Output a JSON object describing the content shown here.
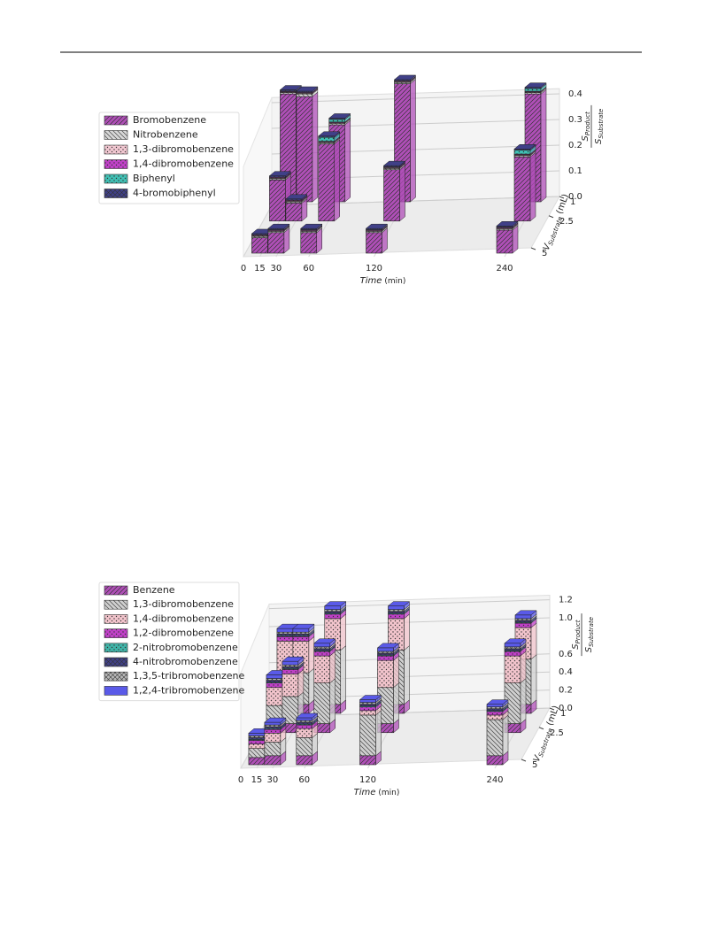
{
  "chart_data": [
    {
      "type": "bar3d",
      "x": [
        15,
        30,
        60,
        120,
        240,
        15,
        30,
        60,
        120,
        240,
        15,
        30,
        60,
        120,
        240
      ],
      "y": [
        1,
        1,
        1,
        1,
        1,
        2.5,
        2.5,
        2.5,
        2.5,
        2.5,
        5,
        5,
        5,
        5,
        5
      ],
      "series": [
        {
          "name": "Bromobenzene",
          "color": "#b04fb8",
          "hatch": "diag",
          "values": [
            0.42,
            0.41,
            0.3,
            0.46,
            0.42,
            0.16,
            0.07,
            0.3,
            0.2,
            0.25,
            0.06,
            0.08,
            0.08,
            0.08,
            0.09
          ]
        },
        {
          "name": "Nitrobenzene",
          "color": "#d8d8d8",
          "hatch": "backdiag",
          "values": [
            0.005,
            0.01,
            0.005,
            0.005,
            0.005,
            0.005,
            0.005,
            0.005,
            0.005,
            0.005,
            0.005,
            0.005,
            0.005,
            0.005,
            0.005
          ]
        },
        {
          "name": "1,3-dibromobenzene",
          "color": "#f2c8d2",
          "hatch": "dots",
          "values": [
            0.003,
            0.003,
            0.003,
            0.003,
            0.003,
            0.003,
            0.003,
            0.003,
            0.003,
            0.003,
            0.003,
            0.003,
            0.003,
            0.003,
            0.003
          ]
        },
        {
          "name": "1,4-dibromobenzene",
          "color": "#c040c8",
          "hatch": "dots",
          "values": [
            0.003,
            0.003,
            0.003,
            0.003,
            0.003,
            0.003,
            0.003,
            0.003,
            0.003,
            0.003,
            0.003,
            0.003,
            0.003,
            0.003,
            0.003
          ]
        },
        {
          "name": "Biphenyl",
          "color": "#40c0b4",
          "hatch": "dots",
          "values": [
            0,
            0,
            0.01,
            0,
            0.01,
            0,
            0,
            0.015,
            0,
            0.015,
            0,
            0,
            0,
            0,
            0
          ]
        },
        {
          "name": "4-bromobiphenyl",
          "color": "#404088",
          "hatch": "cross",
          "values": [
            0.005,
            0.005,
            0.005,
            0.005,
            0.005,
            0.005,
            0.005,
            0.005,
            0.005,
            0.005,
            0.005,
            0.005,
            0.005,
            0.005,
            0.005
          ]
        }
      ],
      "xlabel": {
        "symbol": "Time",
        "unit": "(min)"
      },
      "ylabel": {
        "symbol": "V",
        "sub": "Substrate",
        "unit": "(mL)"
      },
      "zlabel": {
        "num": "S",
        "num_sub": "Product",
        "den": "S",
        "den_sub": "Substrate"
      },
      "xlim": [
        0,
        240
      ],
      "xticks": [
        0,
        15,
        30,
        60,
        120,
        240
      ],
      "yticks": [
        1,
        2.5,
        5
      ],
      "zlim": [
        0,
        0.42
      ],
      "zticks": [
        {
          "value": 0,
          "label": "0.0"
        },
        0.1,
        0.2,
        0.3,
        0.4
      ],
      "grid": true,
      "legend": "left"
    },
    {
      "type": "bar3d",
      "x": [
        15,
        30,
        60,
        120,
        240,
        15,
        30,
        60,
        120,
        240,
        15,
        30,
        60,
        120,
        240
      ],
      "y": [
        1,
        1,
        1,
        1,
        1,
        2.5,
        2.5,
        2.5,
        2.5,
        2.5,
        5,
        5,
        5,
        5,
        5
      ],
      "series": [
        {
          "name": "Benzene",
          "color": "#b04fb8",
          "hatch": "diag",
          "values": [
            0.1,
            0.1,
            0.1,
            0.1,
            0.1,
            0.1,
            0.1,
            0.1,
            0.1,
            0.1,
            0.08,
            0.1,
            0.1,
            0.1,
            0.1
          ]
        },
        {
          "name": "1,3-dibromobenzene",
          "color": "#d0d0d0",
          "hatch": "backdiag",
          "values": [
            0.35,
            0.35,
            0.6,
            0.6,
            0.5,
            0.2,
            0.3,
            0.45,
            0.4,
            0.45,
            0.1,
            0.15,
            0.2,
            0.45,
            0.4
          ]
        },
        {
          "name": "1,4-dibromobenzene",
          "color": "#f2c4cc",
          "hatch": "dots",
          "values": [
            0.35,
            0.35,
            0.35,
            0.35,
            0.35,
            0.2,
            0.25,
            0.3,
            0.3,
            0.3,
            0.05,
            0.1,
            0.1,
            0.05,
            0.05
          ]
        },
        {
          "name": "1,2-dibromobenzene",
          "color": "#c040c8",
          "hatch": "dots",
          "values": [
            0.05,
            0.05,
            0.05,
            0.05,
            0.05,
            0.05,
            0.05,
            0.05,
            0.05,
            0.05,
            0.04,
            0.04,
            0.04,
            0.04,
            0.04
          ]
        },
        {
          "name": "2-nitrobromobenzene",
          "color": "#40b4a8",
          "hatch": "dots",
          "values": [
            0.01,
            0.01,
            0.01,
            0.01,
            0.01,
            0.01,
            0.01,
            0.01,
            0.01,
            0.01,
            0.01,
            0.01,
            0.01,
            0.01,
            0.01
          ]
        },
        {
          "name": "4-nitrobromobenzene",
          "color": "#404088",
          "hatch": "cross",
          "values": [
            0.02,
            0.02,
            0.02,
            0.02,
            0.02,
            0.02,
            0.02,
            0.02,
            0.02,
            0.02,
            0.02,
            0.02,
            0.02,
            0.02,
            0.02
          ]
        },
        {
          "name": "1,3,5-tribromobenzene",
          "color": "#b8b8b8",
          "hatch": "cross",
          "values": [
            0.02,
            0.02,
            0.02,
            0.02,
            0.02,
            0.02,
            0.02,
            0.02,
            0.02,
            0.02,
            0.02,
            0.02,
            0.02,
            0.02,
            0.02
          ]
        },
        {
          "name": "1,2,4-tribromobenzene",
          "color": "#5a5ae8",
          "hatch": "none",
          "values": [
            0.04,
            0.04,
            0.04,
            0.04,
            0.04,
            0.04,
            0.04,
            0.04,
            0.04,
            0.04,
            0.03,
            0.03,
            0.03,
            0.03,
            0.03
          ]
        }
      ],
      "xlabel": {
        "symbol": "Time",
        "unit": "(min)"
      },
      "ylabel": {
        "symbol": "V",
        "sub": "Substrate",
        "unit": "(mL)"
      },
      "zlabel": {
        "num": "S",
        "num_sub": "Product",
        "den": "S",
        "den_sub": "Substrate"
      },
      "xlim": [
        0,
        240
      ],
      "xticks": [
        0,
        15,
        30,
        60,
        120,
        240
      ],
      "yticks": [
        1,
        2.5,
        5
      ],
      "zlim": [
        0,
        1.25
      ],
      "zticks": [
        {
          "value": 0,
          "label": "0.0"
        },
        0.2,
        0.4,
        0.6,
        {
          "value": 1,
          "label": "1.0"
        },
        1.2
      ],
      "grid": true,
      "legend": "left"
    }
  ]
}
